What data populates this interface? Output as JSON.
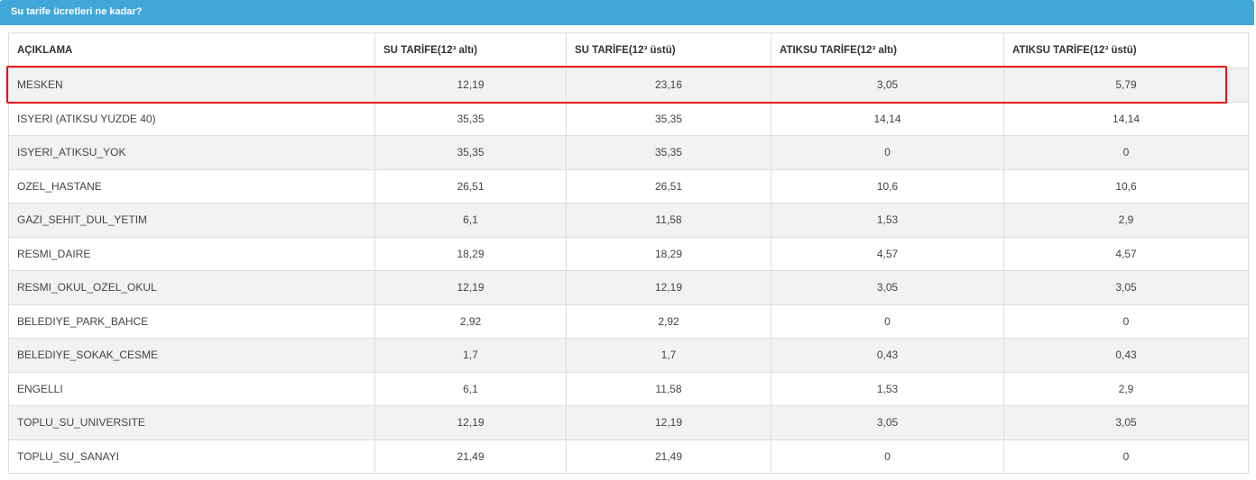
{
  "panel": {
    "title": "Su tarife ücretleri ne kadar?"
  },
  "table": {
    "headers": [
      "AÇIKLAMA",
      "SU TARİFE(12³ altı)",
      "SU TARİFE(12³ üstü)",
      "ATIKSU TARİFE(12³ altı)",
      "ATIKSU TARİFE(12³ üstü)"
    ],
    "rows": [
      [
        "MESKEN",
        "12,19",
        "23,16",
        "3,05",
        "5,79"
      ],
      [
        "ISYERI (ATIKSU YUZDE 40)",
        "35,35",
        "35,35",
        "14,14",
        "14,14"
      ],
      [
        "ISYERI_ATIKSU_YOK",
        "35,35",
        "35,35",
        "0",
        "0"
      ],
      [
        "OZEL_HASTANE",
        "26,51",
        "26,51",
        "10,6",
        "10,6"
      ],
      [
        "GAZI_SEHIT_DUL_YETIM",
        "6,1",
        "11,58",
        "1,53",
        "2,9"
      ],
      [
        "RESMI_DAIRE",
        "18,29",
        "18,29",
        "4,57",
        "4,57"
      ],
      [
        "RESMI_OKUL_OZEL_OKUL",
        "12,19",
        "12,19",
        "3,05",
        "3,05"
      ],
      [
        "BELEDIYE_PARK_BAHCE",
        "2,92",
        "2,92",
        "0",
        "0"
      ],
      [
        "BELEDIYE_SOKAK_CESME",
        "1,7",
        "1,7",
        "0,43",
        "0,43"
      ],
      [
        "ENGELLI",
        "6,1",
        "11,58",
        "1,53",
        "2,9"
      ],
      [
        "TOPLU_SU_UNIVERSITE",
        "12,19",
        "12,19",
        "3,05",
        "3,05"
      ],
      [
        "TOPLU_SU_SANAYI",
        "21,49",
        "21,49",
        "0",
        "0"
      ]
    ]
  }
}
